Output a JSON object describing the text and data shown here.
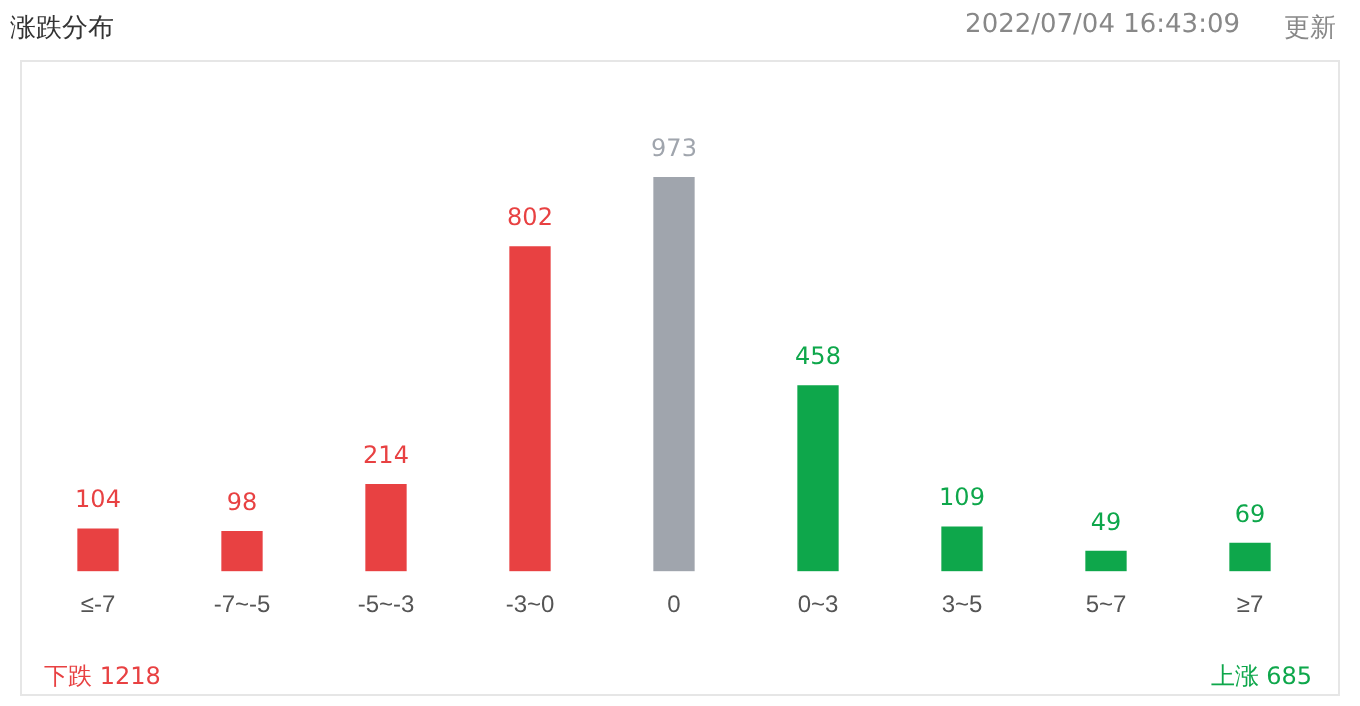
{
  "chart_data": {
    "type": "bar",
    "title": "涨跌分布",
    "subtitle": "2022/07/04 16:43:09",
    "categories": [
      "≤-7",
      "-7~-5",
      "-5~-3",
      "-3~0",
      "0",
      "0~3",
      "3~5",
      "5~7",
      "≥7"
    ],
    "values": [
      104,
      98,
      214,
      802,
      973,
      458,
      109,
      49,
      69
    ],
    "colors": [
      "#e84142",
      "#e84142",
      "#e84142",
      "#e84142",
      "#a0a5ad",
      "#0ea74b",
      "#0ea74b",
      "#0ea74b",
      "#0ea74b"
    ],
    "data_labels": true,
    "grid": false,
    "legend": false,
    "annotations": [
      "下跌 1218",
      "上涨 685",
      "更新"
    ]
  }
}
